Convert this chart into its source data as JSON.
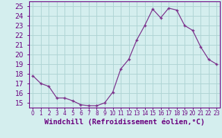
{
  "x": [
    0,
    1,
    2,
    3,
    4,
    5,
    6,
    7,
    8,
    9,
    10,
    11,
    12,
    13,
    14,
    15,
    16,
    17,
    18,
    19,
    20,
    21,
    22,
    23
  ],
  "y": [
    17.8,
    17.0,
    16.7,
    15.5,
    15.5,
    15.2,
    14.8,
    14.7,
    14.7,
    15.0,
    16.1,
    18.5,
    19.5,
    21.5,
    23.0,
    24.7,
    23.8,
    24.8,
    24.6,
    23.0,
    22.5,
    20.8,
    19.5,
    19.0
  ],
  "line_color": "#7b2f8b",
  "marker": "+",
  "bg_color": "#d4eeee",
  "grid_color": "#aed4d4",
  "xlabel": "Windchill (Refroidissement éolien,°C)",
  "ylabel_ticks": [
    15,
    16,
    17,
    18,
    19,
    20,
    21,
    22,
    23,
    24,
    25
  ],
  "xlim": [
    -0.5,
    23.4
  ],
  "ylim": [
    14.5,
    25.5
  ],
  "xtick_labels": [
    "0",
    "1",
    "2",
    "3",
    "4",
    "5",
    "6",
    "7",
    "8",
    "9",
    "10",
    "11",
    "12",
    "13",
    "14",
    "15",
    "16",
    "17",
    "18",
    "19",
    "20",
    "21",
    "22",
    "23"
  ],
  "axis_color": "#6a0080",
  "fontsize_xlabel": 7.5,
  "fontsize_ytick": 7,
  "fontsize_xtick": 5.5
}
